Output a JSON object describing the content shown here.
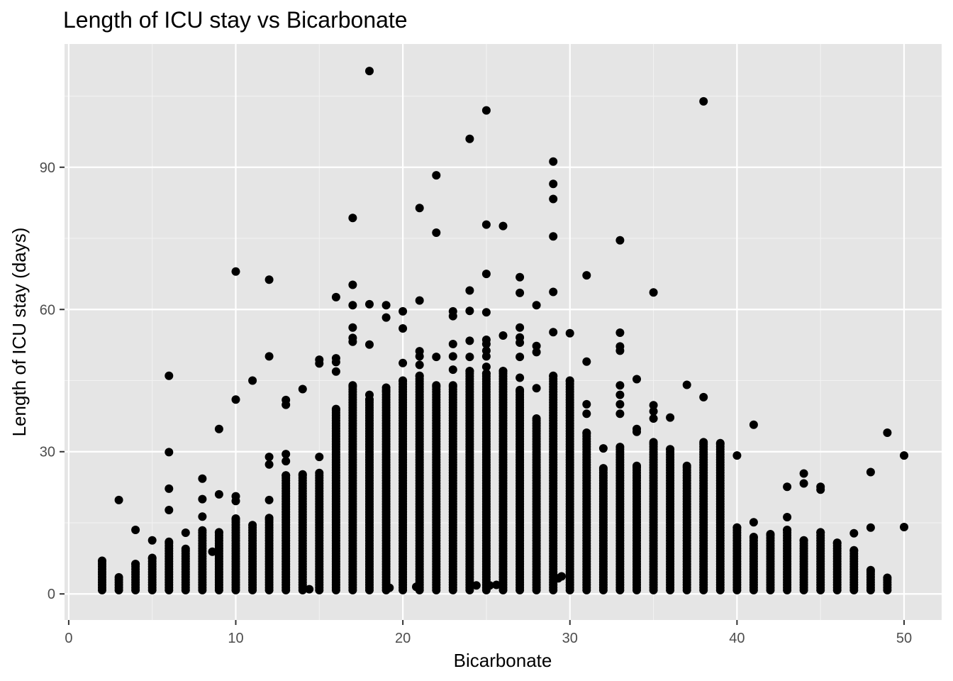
{
  "chart_data": {
    "type": "scatter",
    "title": "Length of ICU stay vs Bicarbonate",
    "xlabel": "Bicarbonate",
    "ylabel": "Length of ICU stay (days)",
    "xlim": [
      -0.25,
      52.25
    ],
    "ylim": [
      -5.5,
      116
    ],
    "x_ticks": [
      0,
      10,
      20,
      30,
      40,
      50
    ],
    "y_ticks": [
      0,
      30,
      60,
      90
    ],
    "grid": true,
    "panel_background": "#e5e5e5",
    "point_color": "#000000",
    "columns": [
      {
        "x": 2,
        "max": 7.0
      },
      {
        "x": 3,
        "max": 3.5,
        "outliers": [
          19.8
        ]
      },
      {
        "x": 4,
        "max": 6.3,
        "outliers": [
          13.5
        ]
      },
      {
        "x": 5,
        "max": 7.6,
        "outliers": [
          11.3
        ]
      },
      {
        "x": 6,
        "max": 11.0,
        "outliers": [
          17.7,
          22.2,
          29.9,
          46.0
        ]
      },
      {
        "x": 7,
        "max": 9.5,
        "outliers": [
          12.9
        ]
      },
      {
        "x": 8,
        "max": 13.4,
        "outliers": [
          16.3,
          20.0,
          24.3
        ]
      },
      {
        "x": 9,
        "max": 13.0,
        "outliers": [
          21.0,
          34.8
        ]
      },
      {
        "x": 10,
        "max": 15.9,
        "outliers": [
          19.6,
          20.6,
          41.0,
          68.0
        ]
      },
      {
        "x": 11,
        "max": 14.5,
        "outliers": [
          45.0
        ]
      },
      {
        "x": 12,
        "max": 16.0,
        "outliers": [
          19.8,
          27.3,
          28.9,
          50.1,
          66.3
        ]
      },
      {
        "x": 13,
        "max": 25.0,
        "outliers": [
          28.0,
          29.5,
          39.9,
          40.9
        ]
      },
      {
        "x": 14,
        "max": 25.2,
        "outliers": [
          43.2
        ]
      },
      {
        "x": 15,
        "max": 25.5,
        "outliers": [
          28.9,
          48.6,
          49.4
        ]
      },
      {
        "x": 16,
        "max": 39.0,
        "outliers": [
          46.9,
          48.9,
          49.7,
          62.6
        ]
      },
      {
        "x": 17,
        "max": 44.0,
        "outliers": [
          53.2,
          54.0,
          56.2,
          60.9,
          65.2,
          79.3
        ]
      },
      {
        "x": 18,
        "max": 41.0,
        "outliers": [
          42.0,
          52.6,
          61.1,
          110.3
        ]
      },
      {
        "x": 19,
        "max": 43.0,
        "outliers": [
          43.5,
          58.3,
          60.9
        ]
      },
      {
        "x": 20,
        "max": 45.0,
        "outliers": [
          48.7,
          56.0,
          59.6
        ]
      },
      {
        "x": 21,
        "max": 46.0,
        "outliers": [
          48.3,
          50.1,
          51.2,
          61.9,
          81.4
        ]
      },
      {
        "x": 22,
        "max": 44.0,
        "outliers": [
          50.0,
          76.2,
          88.3
        ]
      },
      {
        "x": 23,
        "max": 44.0,
        "outliers": [
          47.3,
          50.1,
          52.7,
          58.6,
          59.6
        ]
      },
      {
        "x": 24,
        "max": 47.0,
        "outliers": [
          50.0,
          53.4,
          59.7,
          64.0,
          96.0
        ]
      },
      {
        "x": 25,
        "max": 46.5,
        "outliers": [
          47.9,
          50.1,
          51.3,
          52.7,
          53.6,
          59.4,
          67.5,
          77.9,
          102.0
        ]
      },
      {
        "x": 26,
        "max": 47.0,
        "outliers": [
          54.5,
          77.6
        ]
      },
      {
        "x": 27,
        "max": 43.0,
        "outliers": [
          45.6,
          50.0,
          53.0,
          54.1,
          56.2,
          63.5,
          66.8
        ]
      },
      {
        "x": 28,
        "max": 37.0,
        "outliers": [
          43.4,
          51.0,
          52.3,
          60.9
        ]
      },
      {
        "x": 29,
        "max": 46.0,
        "outliers": [
          55.2,
          63.7,
          75.4,
          83.3,
          86.5,
          91.2
        ]
      },
      {
        "x": 30,
        "max": 45.0,
        "outliers": [
          55.0
        ]
      },
      {
        "x": 31,
        "max": 34.0,
        "outliers": [
          38.0,
          40.0,
          49.0,
          67.2
        ]
      },
      {
        "x": 32,
        "max": 26.5,
        "outliers": [
          30.7
        ]
      },
      {
        "x": 33,
        "max": 31.0,
        "outliers": [
          38.0,
          40.0,
          42.0,
          44.0,
          51.3,
          52.2,
          55.1,
          74.6
        ]
      },
      {
        "x": 34,
        "max": 27.0,
        "outliers": [
          34.2,
          34.8,
          45.3
        ]
      },
      {
        "x": 35,
        "max": 32.0,
        "outliers": [
          37.0,
          38.5,
          39.8,
          63.6
        ]
      },
      {
        "x": 36,
        "max": 30.5,
        "outliers": [
          37.2
        ]
      },
      {
        "x": 37,
        "max": 27.0,
        "outliers": [
          44.1
        ]
      },
      {
        "x": 38,
        "max": 32.0,
        "outliers": [
          41.5,
          103.9
        ]
      },
      {
        "x": 39,
        "max": 31.8
      },
      {
        "x": 40,
        "max": 14.0,
        "outliers": [
          29.2
        ]
      },
      {
        "x": 41,
        "max": 12.0,
        "outliers": [
          15.1,
          35.7
        ]
      },
      {
        "x": 42,
        "max": 12.6
      },
      {
        "x": 43,
        "max": 13.5,
        "outliers": [
          16.2,
          22.6
        ]
      },
      {
        "x": 44,
        "max": 11.3,
        "outliers": [
          23.3,
          25.4
        ]
      },
      {
        "x": 45,
        "max": 13.0,
        "outliers": [
          22.0,
          22.6
        ]
      },
      {
        "x": 46,
        "max": 10.8
      },
      {
        "x": 47,
        "max": 9.2,
        "outliers": [
          12.8
        ]
      },
      {
        "x": 48,
        "max": 5.0,
        "outliers": [
          14.0,
          25.7
        ]
      },
      {
        "x": 49,
        "max": 3.4,
        "outliers": [
          34.0
        ]
      },
      {
        "x": 50,
        "max": 0,
        "outliers": [
          14.1,
          29.2
        ]
      }
    ],
    "extra_points": [
      [
        8.6,
        8.9
      ],
      [
        14.4,
        1.0
      ],
      [
        19.2,
        1.3
      ],
      [
        20.8,
        1.5
      ],
      [
        24.4,
        1.8
      ],
      [
        25.2,
        1.8
      ],
      [
        25.6,
        1.9
      ],
      [
        29.3,
        3.3
      ],
      [
        29.5,
        3.7
      ]
    ]
  }
}
